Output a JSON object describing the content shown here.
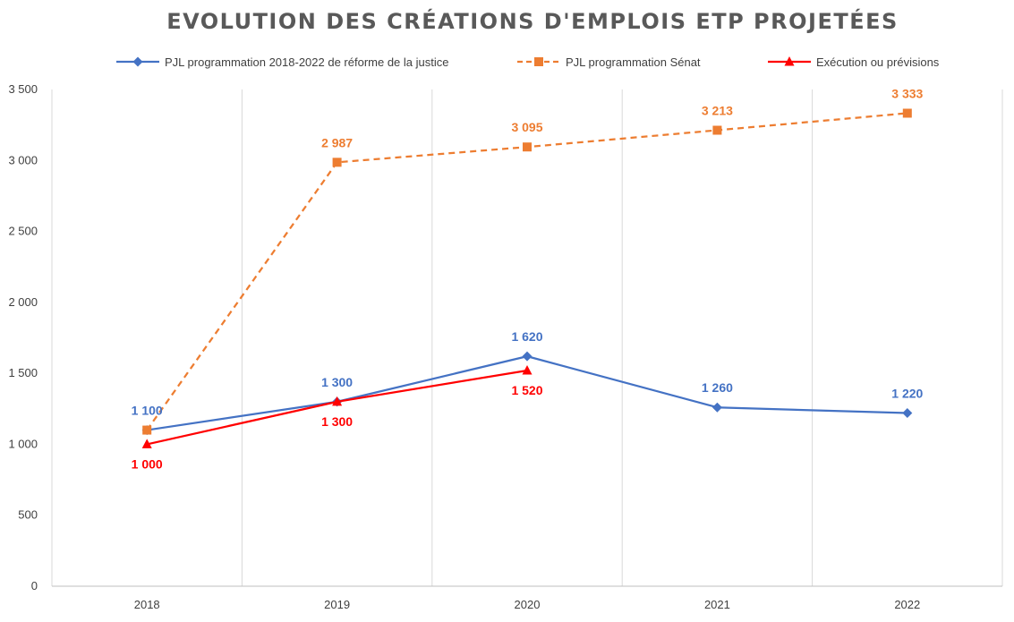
{
  "chart_data": {
    "type": "line",
    "title": "EVOLUTION DES CRÉATIONS D'EMPLOIS ETP PROJETÉES",
    "xlabel": "",
    "ylabel": "",
    "categories": [
      "2018",
      "2019",
      "2020",
      "2021",
      "2022"
    ],
    "ylim": [
      0,
      3500
    ],
    "yticks": [
      0,
      500,
      1000,
      1500,
      2000,
      2500,
      3000,
      3500
    ],
    "ytick_labels": [
      "0",
      "500",
      "1 000",
      "1 500",
      "2 000",
      "2 500",
      "3 000",
      "3 500"
    ],
    "grid": "vertical",
    "legend_position": "top",
    "series": [
      {
        "name": "PJL programmation 2018-2022 de réforme de la justice",
        "values": [
          1100,
          1300,
          1620,
          1260,
          1220
        ],
        "labels": [
          "1 100",
          "1 300",
          "1 620",
          "1 260",
          "1 220"
        ],
        "color": "#4472C4",
        "line_style": "solid",
        "marker": "diamond",
        "label_position": "above"
      },
      {
        "name": "PJL programmation Sénat",
        "values": [
          1100,
          2987,
          3095,
          3213,
          3333
        ],
        "labels": [
          "",
          "2 987",
          "3 095",
          "3 213",
          "3 333"
        ],
        "color": "#ED7D31",
        "line_style": "dashed",
        "marker": "square",
        "label_position": "above"
      },
      {
        "name": "Exécution ou prévisions",
        "values": [
          1000,
          1300,
          1520,
          null,
          null
        ],
        "labels": [
          "1 000",
          "1 300",
          "1 520",
          "",
          ""
        ],
        "color": "#FF0000",
        "line_style": "solid",
        "marker": "triangle",
        "label_position": "below"
      }
    ]
  }
}
